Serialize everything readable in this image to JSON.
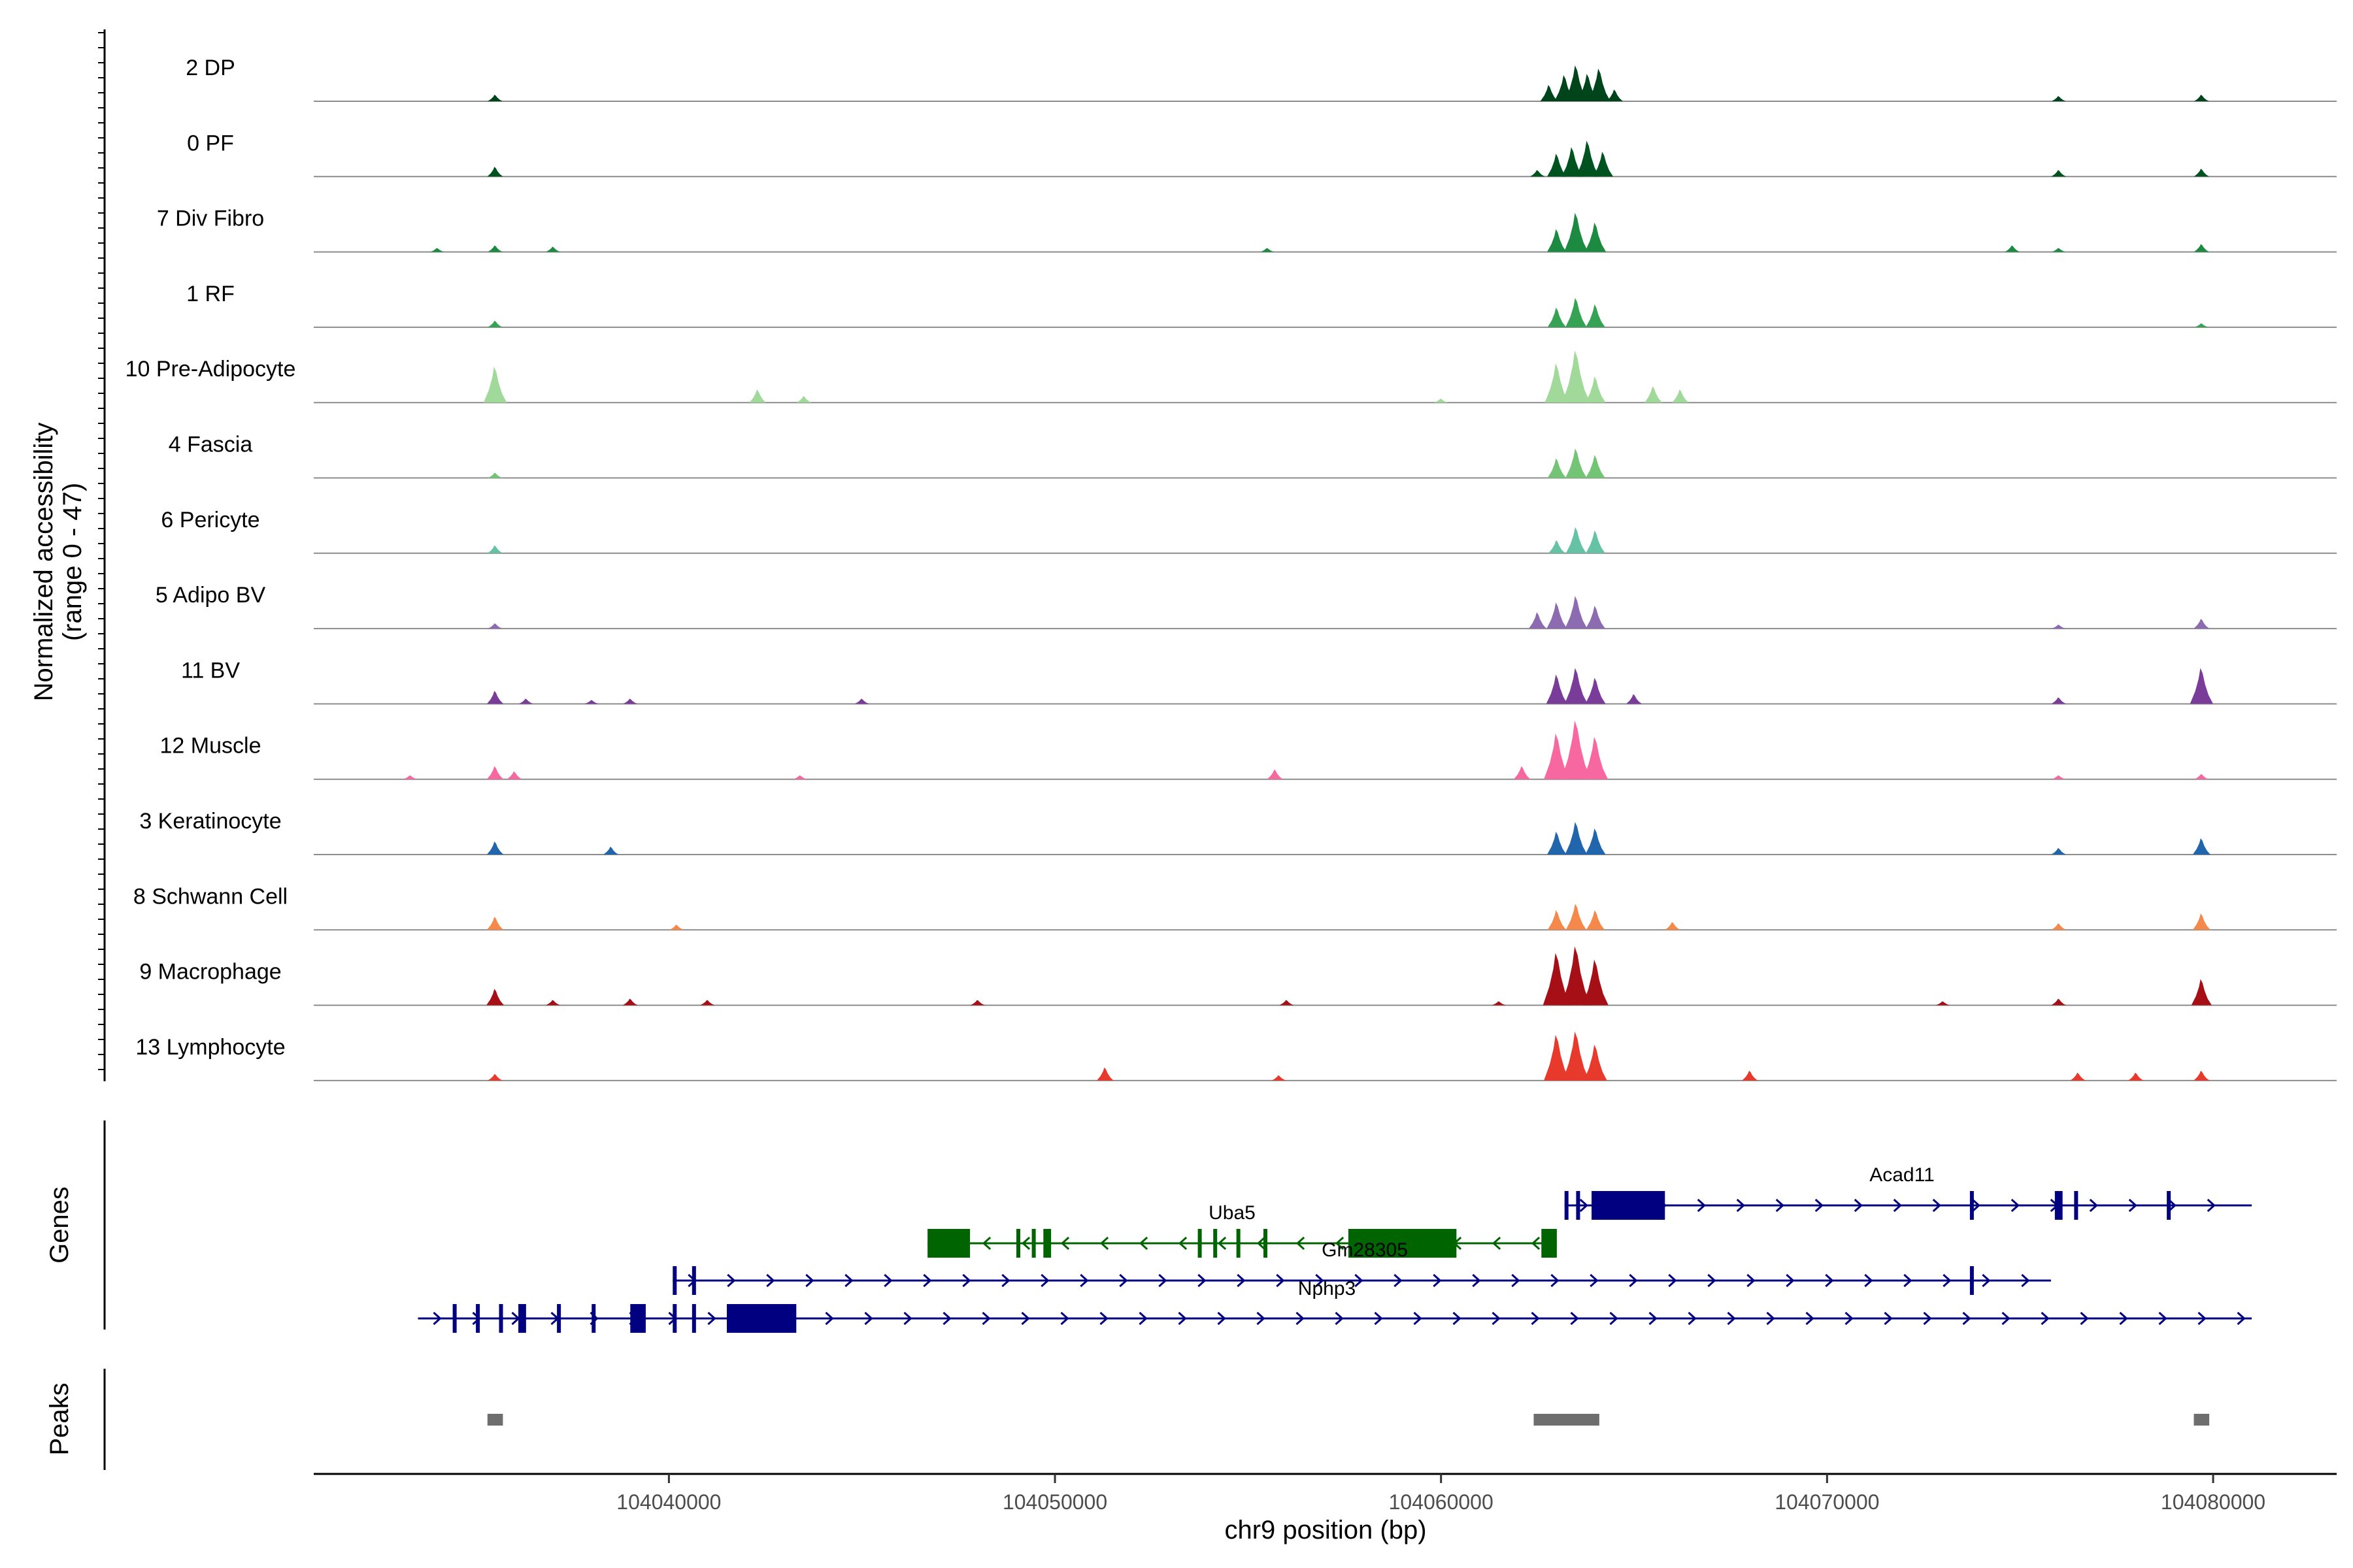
{
  "chart_data": {
    "type": "genome-coverage",
    "y_axis_title_line1": "Normalized accessibility",
    "y_axis_title_line2": "(range 0 - 47)",
    "genes_panel_label": "Genes",
    "peaks_panel_label": "Peaks",
    "xlabel": "chr9 position (bp)",
    "xlim": [
      104030800,
      104083200
    ],
    "x_ticks": [
      104040000,
      104050000,
      104060000,
      104070000,
      104080000
    ],
    "x_tick_labels": [
      "104040000",
      "104050000",
      "104060000",
      "104070000",
      "104080000"
    ],
    "tracks": [
      {
        "name": "2 DP",
        "color": "#00441b",
        "peaks": [
          [
            104035.5,
            0.1
          ],
          [
            104062.8,
            0.25
          ],
          [
            104063.2,
            0.4
          ],
          [
            104063.5,
            0.55
          ],
          [
            104063.8,
            0.42
          ],
          [
            104064.1,
            0.5
          ],
          [
            104064.5,
            0.18
          ],
          [
            104076.0,
            0.08
          ],
          [
            104079.7,
            0.1
          ]
        ]
      },
      {
        "name": "0 PF",
        "color": "#00531f",
        "peaks": [
          [
            104035.5,
            0.15
          ],
          [
            104062.5,
            0.1
          ],
          [
            104063.0,
            0.35
          ],
          [
            104063.4,
            0.45
          ],
          [
            104063.8,
            0.55
          ],
          [
            104064.2,
            0.38
          ],
          [
            104076.0,
            0.1
          ],
          [
            104079.7,
            0.12
          ]
        ]
      },
      {
        "name": "7 Div Fibro",
        "color": "#1d8a41",
        "peaks": [
          [
            104034.0,
            0.06
          ],
          [
            104035.5,
            0.1
          ],
          [
            104037.0,
            0.08
          ],
          [
            104055.5,
            0.06
          ],
          [
            104063.0,
            0.35
          ],
          [
            104063.5,
            0.6
          ],
          [
            104064.0,
            0.45
          ],
          [
            104074.8,
            0.1
          ],
          [
            104076.0,
            0.06
          ],
          [
            104079.7,
            0.12
          ]
        ]
      },
      {
        "name": "1 RF",
        "color": "#36a354",
        "peaks": [
          [
            104035.5,
            0.1
          ],
          [
            104063.0,
            0.3
          ],
          [
            104063.5,
            0.45
          ],
          [
            104064.0,
            0.35
          ],
          [
            104079.7,
            0.06
          ]
        ]
      },
      {
        "name": "10 Pre-Adipocyte",
        "color": "#a1d99b",
        "peaks": [
          [
            104035.5,
            0.55
          ],
          [
            104042.3,
            0.2
          ],
          [
            104043.5,
            0.1
          ],
          [
            104063.0,
            0.6
          ],
          [
            104063.5,
            0.8
          ],
          [
            104064.0,
            0.4
          ],
          [
            104065.5,
            0.25
          ],
          [
            104066.2,
            0.2
          ],
          [
            104060.0,
            0.06
          ]
        ]
      },
      {
        "name": "4 Fascia",
        "color": "#74c476",
        "peaks": [
          [
            104035.5,
            0.08
          ],
          [
            104063.0,
            0.3
          ],
          [
            104063.5,
            0.45
          ],
          [
            104064.0,
            0.35
          ]
        ]
      },
      {
        "name": "6 Pericyte",
        "color": "#66c2a4",
        "peaks": [
          [
            104035.5,
            0.12
          ],
          [
            104063.0,
            0.2
          ],
          [
            104063.5,
            0.4
          ],
          [
            104064.0,
            0.35
          ]
        ]
      },
      {
        "name": "5 Adipo BV",
        "color": "#8c6bb1",
        "peaks": [
          [
            104035.5,
            0.08
          ],
          [
            104062.5,
            0.25
          ],
          [
            104063.0,
            0.4
          ],
          [
            104063.5,
            0.5
          ],
          [
            104064.0,
            0.35
          ],
          [
            104076.0,
            0.06
          ],
          [
            104079.7,
            0.15
          ]
        ]
      },
      {
        "name": "11 BV",
        "color": "#7a3c99",
        "peaks": [
          [
            104035.5,
            0.2
          ],
          [
            104036.3,
            0.08
          ],
          [
            104038.0,
            0.06
          ],
          [
            104039.0,
            0.08
          ],
          [
            104045.0,
            0.08
          ],
          [
            104063.0,
            0.45
          ],
          [
            104063.5,
            0.55
          ],
          [
            104064.0,
            0.4
          ],
          [
            104065.0,
            0.15
          ],
          [
            104076.0,
            0.1
          ],
          [
            104079.7,
            0.55
          ]
        ]
      },
      {
        "name": "12 Muscle",
        "color": "#f768a1",
        "peaks": [
          [
            104033.3,
            0.06
          ],
          [
            104035.5,
            0.2
          ],
          [
            104036.0,
            0.12
          ],
          [
            104043.4,
            0.06
          ],
          [
            104055.7,
            0.15
          ],
          [
            104062.1,
            0.2
          ],
          [
            104063.0,
            0.7
          ],
          [
            104063.5,
            0.9
          ],
          [
            104064.0,
            0.65
          ],
          [
            104076.0,
            0.06
          ],
          [
            104079.7,
            0.08
          ]
        ]
      },
      {
        "name": "3 Keratinocyte",
        "color": "#2166ac",
        "peaks": [
          [
            104035.5,
            0.2
          ],
          [
            104038.5,
            0.12
          ],
          [
            104063.0,
            0.35
          ],
          [
            104063.5,
            0.5
          ],
          [
            104064.0,
            0.4
          ],
          [
            104076.0,
            0.1
          ],
          [
            104079.7,
            0.25
          ]
        ]
      },
      {
        "name": "8 Schwann Cell",
        "color": "#f4894b",
        "peaks": [
          [
            104035.5,
            0.2
          ],
          [
            104040.2,
            0.08
          ],
          [
            104063.0,
            0.3
          ],
          [
            104063.5,
            0.4
          ],
          [
            104064.0,
            0.3
          ],
          [
            104066.0,
            0.12
          ],
          [
            104076.0,
            0.1
          ],
          [
            104079.7,
            0.25
          ]
        ]
      },
      {
        "name": "9 Macrophage",
        "color": "#a50f15",
        "peaks": [
          [
            104035.5,
            0.25
          ],
          [
            104037.0,
            0.08
          ],
          [
            104039.0,
            0.1
          ],
          [
            104041.0,
            0.08
          ],
          [
            104048.0,
            0.08
          ],
          [
            104056.0,
            0.08
          ],
          [
            104061.5,
            0.06
          ],
          [
            104063.0,
            0.8
          ],
          [
            104063.5,
            0.9
          ],
          [
            104064.0,
            0.7
          ],
          [
            104073.0,
            0.06
          ],
          [
            104076.0,
            0.1
          ],
          [
            104079.7,
            0.4
          ]
        ]
      },
      {
        "name": "13 Lymphocyte",
        "color": "#e8392d",
        "peaks": [
          [
            104035.5,
            0.1
          ],
          [
            104051.3,
            0.2
          ],
          [
            104055.8,
            0.08
          ],
          [
            104063.0,
            0.7
          ],
          [
            104063.5,
            0.75
          ],
          [
            104064.0,
            0.55
          ],
          [
            104068.0,
            0.15
          ],
          [
            104076.5,
            0.12
          ],
          [
            104078.0,
            0.12
          ],
          [
            104079.7,
            0.15
          ]
        ]
      }
    ],
    "genes": [
      {
        "name": "Acad11",
        "strand": "+",
        "row": 1,
        "color": "#000080",
        "start": 104063.2,
        "end": 104081.0,
        "exons": [
          [
            104063.2,
            104063.3
          ],
          [
            104063.5,
            104063.6
          ],
          [
            104063.9,
            104065.8
          ],
          [
            104073.7,
            104073.8
          ],
          [
            104075.9,
            104076.1
          ],
          [
            104076.4,
            104076.5
          ],
          [
            104078.8,
            104078.9
          ]
        ]
      },
      {
        "name": "Uba5",
        "strand": "-",
        "row": 2,
        "color": "#006400",
        "start": 104046.7,
        "end": 104063.0,
        "exons": [
          [
            104046.7,
            104047.8
          ],
          [
            104049.0,
            104049.1
          ],
          [
            104049.4,
            104049.5
          ],
          [
            104049.7,
            104049.9
          ],
          [
            104053.7,
            104053.8
          ],
          [
            104054.1,
            104054.2
          ],
          [
            104054.7,
            104054.8
          ],
          [
            104055.4,
            104055.5
          ],
          [
            104057.6,
            104060.4
          ],
          [
            104062.6,
            104063.0
          ]
        ]
      },
      {
        "name": "Gm28305",
        "strand": "+",
        "row": 3,
        "color": "#000080",
        "start": 104040.1,
        "end": 104075.8,
        "exons": [
          [
            104040.1,
            104040.2
          ],
          [
            104040.6,
            104040.7
          ],
          [
            104073.7,
            104073.8
          ]
        ]
      },
      {
        "name": "Nphp3",
        "strand": "+",
        "row": 4,
        "color": "#000080",
        "start": 104033.5,
        "end": 104081.0,
        "exons": [
          [
            104034.4,
            104034.5
          ],
          [
            104035.0,
            104035.1
          ],
          [
            104035.6,
            104035.7
          ],
          [
            104036.1,
            104036.3
          ],
          [
            104037.1,
            104037.2
          ],
          [
            104038.0,
            104038.1
          ],
          [
            104039.0,
            104039.4
          ],
          [
            104040.1,
            104040.2
          ],
          [
            104040.6,
            104040.7
          ],
          [
            104041.5,
            104043.3
          ]
        ]
      }
    ],
    "peaks": [
      [
        104035.3,
        104035.7
      ],
      [
        104062.4,
        104064.1
      ],
      [
        104079.5,
        104079.9
      ]
    ]
  }
}
